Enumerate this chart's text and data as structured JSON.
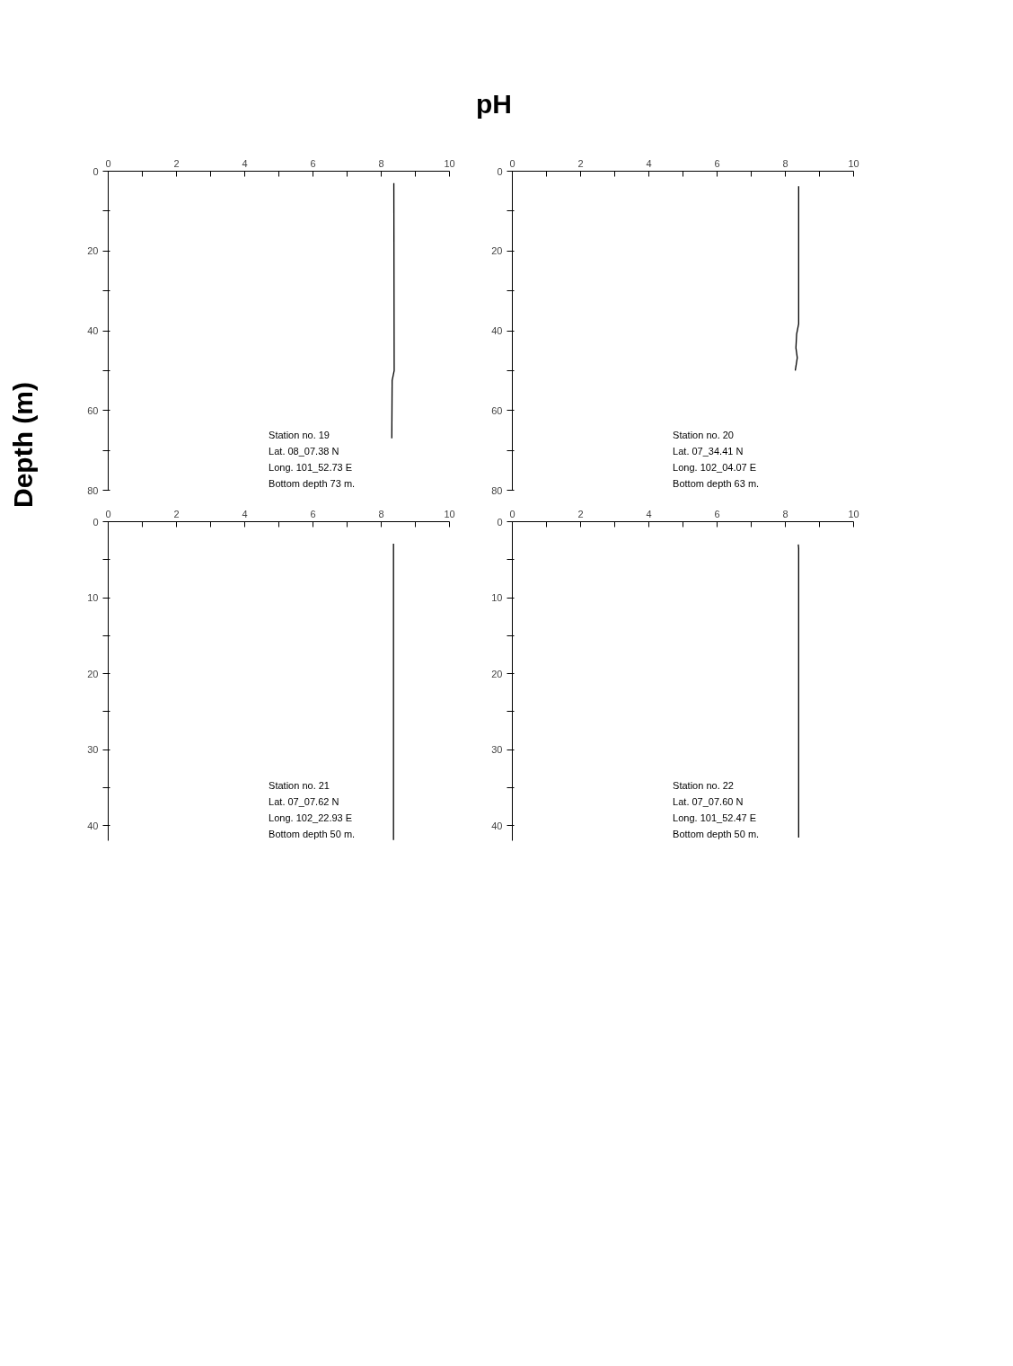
{
  "chart_data": [
    {
      "type": "other",
      "title": "pH",
      "ylabel": "Depth (m)"
    },
    {
      "type": "line",
      "xlim": [
        0,
        10
      ],
      "ylim": [
        80,
        0
      ],
      "xticks": [
        0,
        {
          "value": 1,
          "label": null
        },
        2,
        {
          "value": 3,
          "label": null
        },
        4,
        {
          "value": 5,
          "label": null
        },
        6,
        {
          "value": 7,
          "label": null
        },
        8,
        {
          "value": 9,
          "label": null
        },
        10
      ],
      "yticks": [
        0,
        {
          "value": 10,
          "label": null
        },
        20,
        {
          "value": 30,
          "label": null
        },
        40,
        {
          "value": 50,
          "label": null
        },
        60,
        {
          "value": 70,
          "label": null
        },
        80
      ],
      "series": [
        {
          "color": "#000000",
          "x": [
            8.37,
            8.38,
            8.32,
            8.31
          ],
          "values": [
            3,
            50,
            52.5,
            67
          ]
        }
      ],
      "annotations": [
        "Station no. 19",
        "Lat. 08_07.38 N",
        "Long. 101_52.73 E",
        "Bottom depth 73 m."
      ]
    },
    {
      "type": "line",
      "xlim": [
        0,
        10
      ],
      "ylim": [
        80,
        0
      ],
      "xticks": [
        0,
        {
          "value": 1,
          "label": null
        },
        2,
        {
          "value": 3,
          "label": null
        },
        4,
        {
          "value": 5,
          "label": null
        },
        6,
        {
          "value": 7,
          "label": null
        },
        8,
        {
          "value": 9,
          "label": null
        },
        10
      ],
      "yticks": [
        0,
        {
          "value": 10,
          "label": null
        },
        20,
        {
          "value": 30,
          "label": null
        },
        40,
        {
          "value": 50,
          "label": null
        },
        60,
        {
          "value": 70,
          "label": null
        },
        80
      ],
      "series": [
        {
          "color": "#000000",
          "x": [
            8.39,
            8.39,
            8.33,
            8.31,
            8.35,
            8.29
          ],
          "values": [
            3.8,
            38.3,
            40.9,
            44.3,
            46.8,
            50
          ]
        }
      ],
      "annotations": [
        "Station no. 20",
        "Lat. 07_34.41 N",
        "Long. 102_04.07 E",
        "Bottom depth 63 m."
      ]
    },
    {
      "type": "line",
      "xlim": [
        0,
        10
      ],
      "ylim": [
        42,
        0
      ],
      "xticks": [
        0,
        {
          "value": 1,
          "label": null
        },
        2,
        {
          "value": 3,
          "label": null
        },
        4,
        {
          "value": 5,
          "label": null
        },
        6,
        {
          "value": 7,
          "label": null
        },
        8,
        {
          "value": 9,
          "label": null
        },
        10
      ],
      "yticks": [
        0,
        {
          "value": 5,
          "label": null
        },
        10,
        {
          "value": 15,
          "label": null
        },
        20,
        {
          "value": 25,
          "label": null
        },
        30,
        {
          "value": 35,
          "label": null
        },
        40
      ],
      "series": [
        {
          "color": "#000000",
          "x": [
            8.36,
            8.36
          ],
          "values": [
            2.9,
            41.9
          ]
        }
      ],
      "annotations": [
        "Station no. 21",
        "Lat. 07_07.62 N",
        "Long. 102_22.93 E",
        "Bottom depth 50 m."
      ]
    },
    {
      "type": "line",
      "xlim": [
        0,
        10
      ],
      "ylim": [
        42,
        0
      ],
      "xticks": [
        0,
        {
          "value": 1,
          "label": null
        },
        2,
        {
          "value": 3,
          "label": null
        },
        4,
        {
          "value": 5,
          "label": null
        },
        6,
        {
          "value": 7,
          "label": null
        },
        8,
        {
          "value": 9,
          "label": null
        },
        10
      ],
      "yticks": [
        0,
        {
          "value": 5,
          "label": null
        },
        10,
        {
          "value": 15,
          "label": null
        },
        20,
        {
          "value": 25,
          "label": null
        },
        30,
        {
          "value": 35,
          "label": null
        },
        40
      ],
      "series": [
        {
          "color": "#000000",
          "x": [
            8.38,
            8.39,
            8.39
          ],
          "values": [
            3,
            3.5,
            41.6
          ]
        }
      ],
      "annotations": [
        "Station no. 22",
        "Lat. 07_07.60 N",
        "Long. 101_52.47 E",
        "Bottom depth 50 m."
      ]
    }
  ]
}
